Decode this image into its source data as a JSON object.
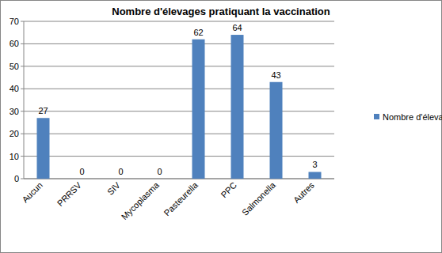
{
  "chart_data": {
    "type": "bar",
    "title": "Nombre d'élevages pratiquant la vaccination",
    "categories": [
      "Aucun",
      "PRRSV",
      "SIV",
      "Mycoplasma",
      "Pasteurella",
      "PPC",
      "Salmonella",
      "Autres"
    ],
    "series": [
      {
        "name": "Nombre d'élevages",
        "color": "#4f81bd",
        "values": [
          27,
          0,
          0,
          0,
          62,
          64,
          43,
          3
        ]
      }
    ],
    "ylim": [
      0,
      70
    ],
    "yticks": [
      0,
      10,
      20,
      30,
      40,
      50,
      60,
      70
    ],
    "grid": true,
    "data_labels": true,
    "legend": "right"
  }
}
